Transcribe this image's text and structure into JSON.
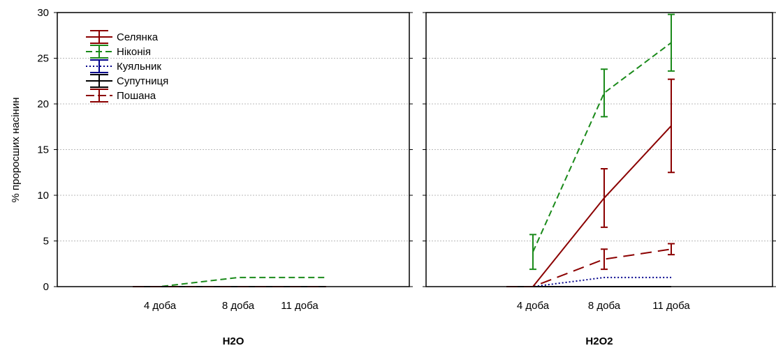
{
  "chart_data": {
    "type": "line",
    "ylabel": "% проросших насінин",
    "ylim": [
      0,
      30
    ],
    "yticks": [
      0,
      5,
      10,
      15,
      20,
      25,
      30
    ],
    "grid": true,
    "legend_position": "top-left of left panel",
    "categories": [
      "4 доба",
      "8 доба",
      "11 доба"
    ],
    "legend": [
      {
        "name": "Селянка",
        "color": "#8b0000",
        "style": "solid"
      },
      {
        "name": "Ніконія",
        "color": "#1a8a1a",
        "style": "dashed"
      },
      {
        "name": "Куяльник",
        "color": "#00008b",
        "style": "dotted"
      },
      {
        "name": "Супутниця",
        "color": "#000000",
        "style": "solid"
      },
      {
        "name": "Пошана",
        "color": "#8b0000",
        "style": "longdash"
      }
    ],
    "panels": [
      {
        "title": "H2O",
        "series": [
          {
            "name": "Селянка",
            "values": [
              0,
              0,
              0
            ],
            "errors": [
              0,
              0,
              0
            ]
          },
          {
            "name": "Ніконія",
            "values": [
              0,
              1,
              1
            ],
            "errors": [
              0,
              0,
              0
            ]
          },
          {
            "name": "Куяльник",
            "values": [
              0,
              0,
              0
            ],
            "errors": [
              0,
              0,
              0
            ]
          },
          {
            "name": "Супутниця",
            "values": [
              0,
              0,
              0
            ],
            "errors": [
              0,
              0,
              0
            ]
          },
          {
            "name": "Пошана",
            "values": [
              0,
              0,
              0
            ],
            "errors": [
              0,
              0,
              0
            ]
          }
        ]
      },
      {
        "title": "H2O2",
        "series": [
          {
            "name": "Селянка",
            "values": [
              0,
              9.7,
              17.6
            ],
            "errors": [
              0,
              3.2,
              5.1
            ]
          },
          {
            "name": "Ніконія",
            "values": [
              3.8,
              21.2,
              26.7
            ],
            "errors": [
              1.9,
              2.6,
              3.1
            ]
          },
          {
            "name": "Куяльник",
            "values": [
              0,
              1,
              1
            ],
            "errors": [
              0,
              0,
              0
            ]
          },
          {
            "name": "Супутниця",
            "values": [
              0,
              0,
              0
            ],
            "errors": [
              0,
              0,
              0
            ]
          },
          {
            "name": "Пошана",
            "values": [
              0,
              3,
              4.1
            ],
            "errors": [
              0,
              1.1,
              0.6
            ]
          }
        ]
      }
    ]
  }
}
